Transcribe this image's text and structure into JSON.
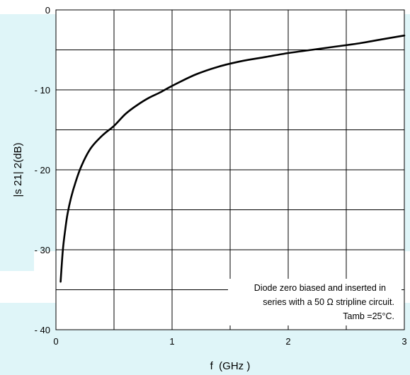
{
  "chart_data": {
    "type": "line",
    "title": "",
    "xlabel": "f  (GHz )",
    "ylabel": "|s 21| 2(dB)",
    "xlim": [
      0,
      3
    ],
    "ylim": [
      -40,
      0
    ],
    "grid": true,
    "x_ticks": [
      {
        "value": 0,
        "label": "0"
      },
      {
        "value": 1,
        "label": "1"
      },
      {
        "value": 2,
        "label": "2"
      },
      {
        "value": 3,
        "label": "3"
      }
    ],
    "y_ticks": [
      {
        "value": 0,
        "label": "0"
      },
      {
        "value": -10,
        "label": "- 10"
      },
      {
        "value": -20,
        "label": "- 20"
      },
      {
        "value": -30,
        "label": "- 30"
      },
      {
        "value": -40,
        "label": "- 40"
      }
    ],
    "series": [
      {
        "x": [
          0.04,
          0.06,
          0.08,
          0.1,
          0.13,
          0.17,
          0.22,
          0.3,
          0.4,
          0.5,
          0.6,
          0.7,
          0.8,
          0.9,
          1.0,
          1.2,
          1.4,
          1.6,
          1.8,
          2.0,
          2.2,
          2.4,
          2.6,
          2.8,
          3.0
        ],
        "y": [
          -34.0,
          -30.0,
          -27.5,
          -25.5,
          -23.5,
          -21.5,
          -19.5,
          -17.3,
          -15.7,
          -14.5,
          -13.0,
          -11.9,
          -11.0,
          -10.3,
          -9.5,
          -8.1,
          -7.1,
          -6.4,
          -5.9,
          -5.4,
          -5.0,
          -4.6,
          -4.2,
          -3.7,
          -3.2
        ]
      }
    ],
    "annotation": [
      "Diode zero biased and inserted in",
      "series with a 50 Ω stripline circuit.",
      "Tamb =25°C."
    ],
    "colors": {
      "watermark": "#dff5f8",
      "line": "#000000",
      "grid": "#000000"
    }
  }
}
